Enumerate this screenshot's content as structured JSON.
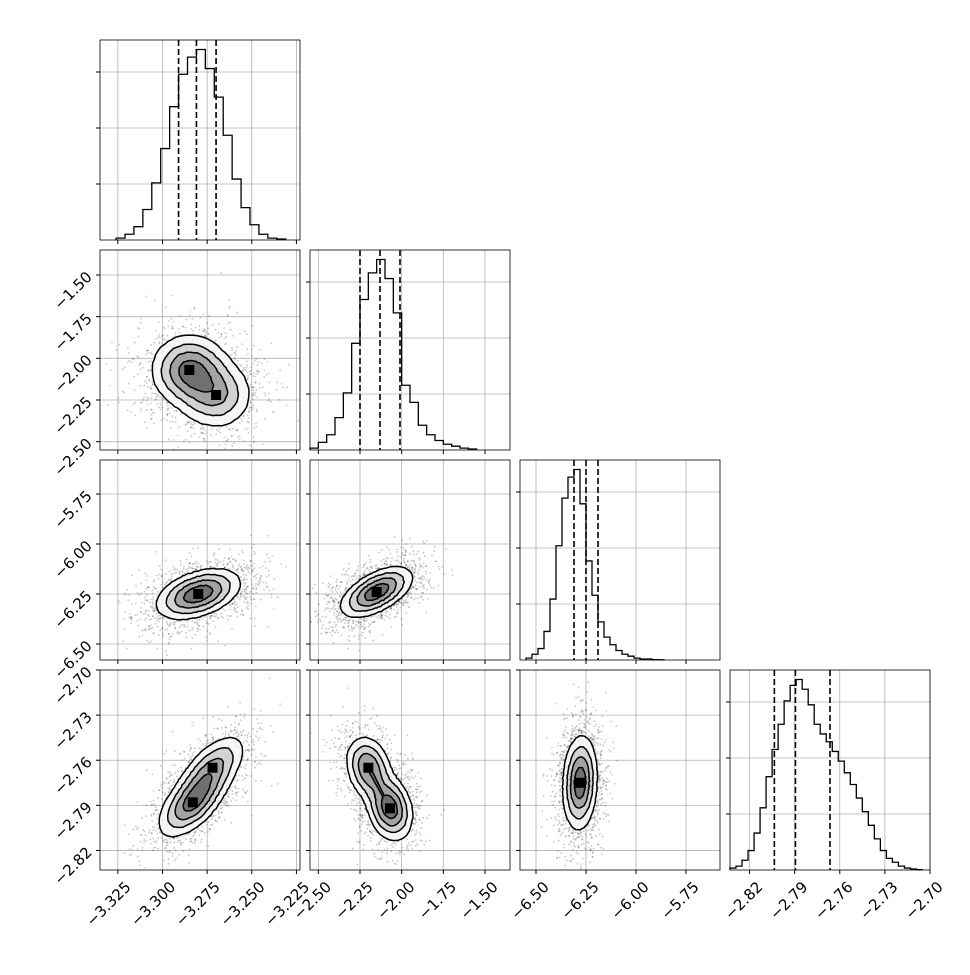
{
  "chart_data": {
    "type": "corner",
    "title": "",
    "grid": true,
    "parameters": [
      {
        "axis_range": [
          -3.335,
          -3.223
        ],
        "ticks": [
          -3.325,
          -3.3,
          -3.275,
          -3.25,
          -3.225
        ],
        "tick_labels": [
          "−3.325",
          "−3.300",
          "−3.275",
          "−3.250",
          "−3.225"
        ],
        "quantiles": [
          -3.291,
          -3.281,
          -3.27
        ],
        "hist_edges": [
          -3.326,
          -3.321,
          -3.316,
          -3.311,
          -3.306,
          -3.301,
          -3.296,
          -3.291,
          -3.286,
          -3.281,
          -3.276,
          -3.271,
          -3.266,
          -3.261,
          -3.256,
          -3.251,
          -3.246,
          -3.241,
          -3.236,
          -3.231
        ],
        "hist_counts": [
          0.01,
          0.03,
          0.07,
          0.16,
          0.3,
          0.48,
          0.7,
          0.87,
          0.96,
          1.0,
          0.9,
          0.75,
          0.55,
          0.32,
          0.17,
          0.08,
          0.03,
          0.01,
          0.005
        ],
        "samples": {
          "mean": -3.281,
          "std": 0.0125
        }
      },
      {
        "axis_range": [
          -2.55,
          -1.35
        ],
        "ticks": [
          -2.5,
          -2.25,
          -2.0,
          -1.75,
          -1.5
        ],
        "tick_labels": [
          "−2.50",
          "−2.25",
          "−2.00",
          "−1.75",
          "−1.50"
        ],
        "quantiles": [
          -2.25,
          -2.13,
          -2.01
        ],
        "hist_edges": [
          -2.55,
          -2.5,
          -2.45,
          -2.4,
          -2.35,
          -2.3,
          -2.25,
          -2.2,
          -2.15,
          -2.1,
          -2.05,
          -2.0,
          -1.95,
          -1.9,
          -1.85,
          -1.8,
          -1.75,
          -1.7,
          -1.65,
          -1.6,
          -1.55
        ],
        "hist_counts": [
          0.01,
          0.04,
          0.08,
          0.17,
          0.3,
          0.56,
          0.79,
          0.93,
          1.0,
          0.9,
          0.72,
          0.34,
          0.25,
          0.13,
          0.08,
          0.05,
          0.03,
          0.02,
          0.01,
          0.005
        ],
        "samples": {
          "mean": -2.12,
          "std": 0.12
        }
      },
      {
        "axis_range": [
          -6.58,
          -5.58
        ],
        "ticks": [
          -6.5,
          -6.25,
          -6.0,
          -5.75
        ],
        "tick_labels": [
          "−6.50",
          "−6.25",
          "−6.00",
          "−5.75"
        ],
        "quantiles": [
          -6.31,
          -6.25,
          -6.19
        ],
        "hist_edges": [
          -6.55,
          -6.52,
          -6.49,
          -6.46,
          -6.43,
          -6.4,
          -6.37,
          -6.34,
          -6.31,
          -6.28,
          -6.25,
          -6.22,
          -6.19,
          -6.16,
          -6.13,
          -6.1,
          -6.07,
          -6.04,
          -6.01,
          -5.98,
          -5.95,
          -5.92,
          -5.89,
          -5.86
        ],
        "hist_counts": [
          0.01,
          0.03,
          0.06,
          0.15,
          0.32,
          0.6,
          0.85,
          0.96,
          1.0,
          0.82,
          0.52,
          0.34,
          0.2,
          0.12,
          0.08,
          0.05,
          0.03,
          0.02,
          0.01,
          0.005,
          0.005,
          0.002,
          0.001
        ],
        "samples": {
          "mean": -6.25,
          "std": 0.07
        }
      },
      {
        "axis_range": [
          -2.833,
          -2.7
        ],
        "ticks": [
          -2.82,
          -2.79,
          -2.76,
          -2.73,
          -2.7
        ],
        "tick_labels": [
          "−2.82",
          "−2.79",
          "−2.76",
          "−2.73",
          "−2.70"
        ],
        "quantiles": [
          -2.8035,
          -2.7895,
          -2.7665
        ],
        "hist_edges": [
          -2.833,
          -2.829,
          -2.825,
          -2.821,
          -2.817,
          -2.813,
          -2.809,
          -2.805,
          -2.801,
          -2.797,
          -2.793,
          -2.789,
          -2.785,
          -2.781,
          -2.777,
          -2.773,
          -2.769,
          -2.765,
          -2.761,
          -2.757,
          -2.753,
          -2.749,
          -2.745,
          -2.741,
          -2.737,
          -2.733,
          -2.729,
          -2.725,
          -2.721,
          -2.717,
          -2.713,
          -2.709,
          -2.705
        ],
        "hist_counts": [
          0.01,
          0.02,
          0.05,
          0.1,
          0.19,
          0.32,
          0.48,
          0.62,
          0.75,
          0.87,
          0.95,
          0.98,
          0.93,
          0.85,
          0.75,
          0.7,
          0.66,
          0.61,
          0.56,
          0.5,
          0.44,
          0.37,
          0.3,
          0.23,
          0.16,
          0.1,
          0.06,
          0.04,
          0.02,
          0.01,
          0.005,
          0.002
        ],
        "samples": {
          "mean": -2.786,
          "std": 0.016
        }
      }
    ],
    "pairs": [
      {
        "x": 0,
        "y": 1,
        "modes": [
          {
            "mx": -3.285,
            "my": -2.07,
            "w": 0.6
          },
          {
            "mx": -3.27,
            "my": -2.22,
            "w": 0.4
          }
        ],
        "sx": 0.011,
        "sy": 0.11,
        "rho": 0.0
      },
      {
        "x": 0,
        "y": 2,
        "modes": [
          {
            "mx": -3.28,
            "my": -6.25,
            "w": 1.0
          }
        ],
        "sx": 0.012,
        "sy": 0.065,
        "rho": 0.4
      },
      {
        "x": 1,
        "y": 2,
        "modes": [
          {
            "mx": -2.15,
            "my": -6.24,
            "w": 1.0
          }
        ],
        "sx": 0.11,
        "sy": 0.065,
        "rho": 0.55
      },
      {
        "x": 0,
        "y": 3,
        "modes": [
          {
            "mx": -3.283,
            "my": -2.788,
            "w": 0.6
          },
          {
            "mx": -3.272,
            "my": -2.765,
            "w": 0.4
          }
        ],
        "sx": 0.01,
        "sy": 0.012,
        "rho": 0.6
      },
      {
        "x": 1,
        "y": 3,
        "modes": [
          {
            "mx": -2.2,
            "my": -2.765,
            "w": 0.45
          },
          {
            "mx": -2.07,
            "my": -2.792,
            "w": 0.55
          }
        ],
        "sx": 0.07,
        "sy": 0.011,
        "rho": -0.2
      },
      {
        "x": 2,
        "y": 3,
        "modes": [
          {
            "mx": -6.28,
            "my": -2.775,
            "w": 1.0
          }
        ],
        "sx": 0.045,
        "sy": 0.016,
        "rho": 0.1
      }
    ]
  }
}
